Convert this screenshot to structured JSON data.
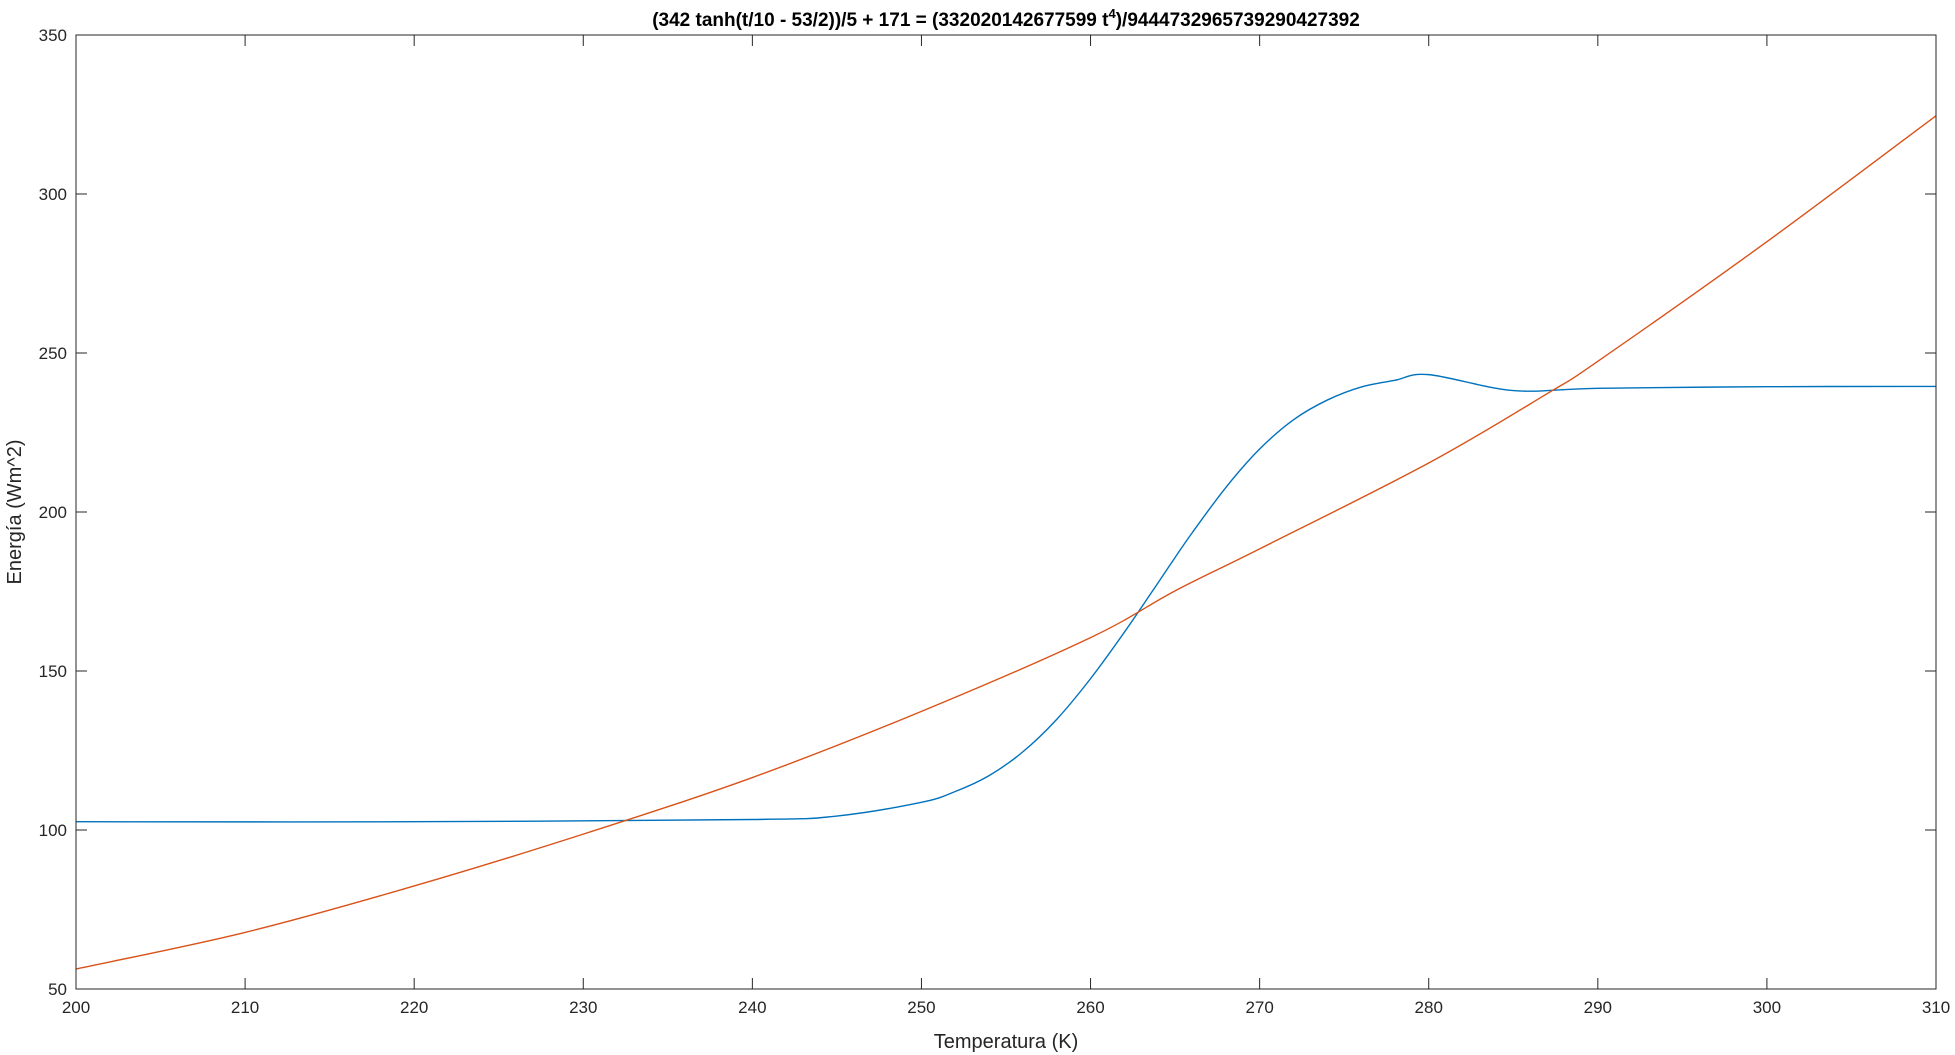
{
  "chart_data": {
    "type": "line",
    "title": {
      "prefix": "(342 tanh(t/10 - 53/2))/5 + 171 = (332020142677599 t",
      "superscript": "4",
      "suffix": ")/9444732965739290427392"
    },
    "xlabel": "Temperatura (K)",
    "ylabel": "Energía (Wm^2)",
    "xlim": [
      200,
      310
    ],
    "ylim": [
      50,
      350
    ],
    "xticks": [
      200,
      210,
      220,
      230,
      240,
      250,
      260,
      270,
      280,
      290,
      300,
      310
    ],
    "yticks": [
      50,
      100,
      150,
      200,
      250,
      300,
      350
    ],
    "grid": false,
    "colors": {
      "series1": "#0072BD",
      "series2": "#D95319",
      "axes": "#262626"
    },
    "series": [
      {
        "color": "#0072BD",
        "x": [
          200,
          220,
          240,
          245,
          250,
          252,
          254,
          256,
          258,
          260,
          262,
          264,
          265,
          266,
          268,
          270,
          272,
          274,
          276,
          278,
          280,
          285,
          290,
          300,
          310
        ],
        "y": [
          102.6,
          102.6,
          103.3,
          104.4,
          108.7,
          112.1,
          117.1,
          124.6,
          134.8,
          147.6,
          162.2,
          177.8,
          185.7,
          193.4,
          207.7,
          219.8,
          229.0,
          235.2,
          239.3,
          241.4,
          243.2,
          238.2,
          238.9,
          239.4,
          239.5
        ]
      },
      {
        "color": "#D95319",
        "x": [
          200,
          210,
          220,
          230,
          240,
          250,
          260,
          265,
          270,
          280,
          287,
          290,
          300,
          310
        ],
        "y": [
          56.3,
          67.8,
          82.4,
          98.7,
          116.5,
          137.3,
          160.5,
          175.2,
          188.4,
          215.4,
          237.2,
          247.4,
          285.0,
          324.6
        ]
      }
    ]
  }
}
